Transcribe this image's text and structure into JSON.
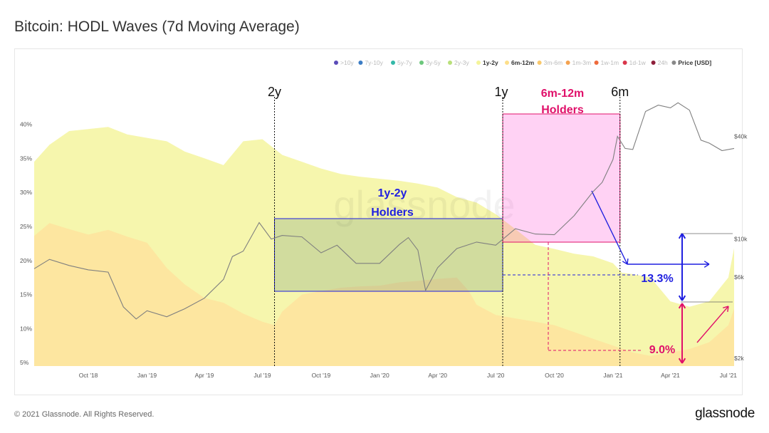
{
  "page": {
    "title": "Bitcoin: HODL Waves (7d Moving Average)",
    "copyright": "© 2021 Glassnode. All Rights Reserved.",
    "brand": "glassnode",
    "watermark": "glassnode"
  },
  "chart_data": {
    "type": "area",
    "title": "Bitcoin: HODL Waves (7d Moving Average)",
    "legend_placement": "top-right",
    "legend": [
      {
        "label": ">10y",
        "color": "#5b4bb8",
        "active": false
      },
      {
        "label": "7y-10y",
        "color": "#3b7cc4",
        "active": false
      },
      {
        "label": "5y-7y",
        "color": "#33b8a8",
        "active": false
      },
      {
        "label": "3y-5y",
        "color": "#6cc77c",
        "active": false
      },
      {
        "label": "2y-3y",
        "color": "#b9e07a",
        "active": false
      },
      {
        "label": "1y-2y",
        "color": "#f4f49a",
        "active": true
      },
      {
        "label": "6m-12m",
        "color": "#fddf8a",
        "active": true
      },
      {
        "label": "3m-6m",
        "color": "#f9c86b",
        "active": false
      },
      {
        "label": "1m-3m",
        "color": "#f4a24f",
        "active": false
      },
      {
        "label": "1w-1m",
        "color": "#ee6a3c",
        "active": false
      },
      {
        "label": "1d-1w",
        "color": "#d9364a",
        "active": false
      },
      {
        "label": "24h",
        "color": "#8e1f3a",
        "active": false
      },
      {
        "label": "Price [USD]",
        "color": "#888888",
        "active": true
      }
    ],
    "x_ticks": [
      "Oct '18",
      "Jan '19",
      "Apr '19",
      "Jul '19",
      "Oct '19",
      "Jan '20",
      "Apr '20",
      "Jul '20",
      "Oct '20",
      "Jan '21",
      "Apr '21",
      "Jul '21"
    ],
    "y_left_ticks": [
      "5%",
      "10%",
      "15%",
      "20%",
      "25%",
      "30%",
      "35%",
      "40%"
    ],
    "y_left_ticks_values": [
      5,
      10,
      15,
      20,
      25,
      30,
      35,
      40
    ],
    "ylim_left": [
      4.5,
      43.5
    ],
    "y_right_ticks": [
      "$2k",
      "$6k",
      "$10k",
      "$40k"
    ],
    "y_right_ticks_values": [
      2000,
      6000,
      10000,
      40000
    ],
    "ylim_right": [
      1800,
      65000
    ],
    "y_right_scale": "log",
    "series": [
      {
        "name": "6m-12m",
        "color": "#fde6a0",
        "x": [
          "2018-07-08",
          "2018-08-01",
          "2018-09-01",
          "2018-10-01",
          "2018-11-01",
          "2018-12-01",
          "2019-01-01",
          "2019-02-01",
          "2019-03-01",
          "2019-04-01",
          "2019-05-01",
          "2019-06-01",
          "2019-07-01",
          "2019-07-20",
          "2019-08-01",
          "2019-09-01",
          "2019-10-01",
          "2019-11-01",
          "2019-12-01",
          "2020-01-01",
          "2020-02-01",
          "2020-03-01",
          "2020-04-01",
          "2020-05-01",
          "2020-05-20",
          "2020-06-01",
          "2020-07-01",
          "2020-08-01",
          "2020-09-01",
          "2020-10-01",
          "2020-11-01",
          "2020-12-01",
          "2021-01-01",
          "2021-02-01",
          "2021-03-01",
          "2021-04-01",
          "2021-05-01",
          "2021-06-01",
          "2021-07-01",
          "2021-07-10"
        ],
        "values": [
          23.6,
          25.5,
          24.6,
          23.8,
          24.5,
          23.5,
          22.6,
          18.9,
          16.5,
          14.5,
          13.8,
          12.2,
          11.0,
          10.5,
          12.5,
          15.0,
          15.5,
          16.0,
          16.2,
          16.3,
          16.8,
          17.0,
          17.3,
          17.5,
          15.5,
          13.5,
          12.0,
          11.5,
          11.0,
          10.5,
          9.5,
          8.5,
          7.5,
          6.5,
          6.0,
          6.5,
          7.0,
          8.0,
          10.5,
          12.9
        ]
      },
      {
        "name": "1y-2y",
        "color": "#f6f6ad",
        "x": [
          "2018-07-08",
          "2018-08-01",
          "2018-09-01",
          "2018-10-01",
          "2018-11-01",
          "2018-12-01",
          "2019-01-01",
          "2019-02-01",
          "2019-03-01",
          "2019-04-01",
          "2019-05-01",
          "2019-06-01",
          "2019-07-01",
          "2019-08-01",
          "2019-09-01",
          "2019-10-01",
          "2019-11-01",
          "2019-12-01",
          "2020-01-01",
          "2020-02-01",
          "2020-03-01",
          "2020-04-01",
          "2020-05-01",
          "2020-06-01",
          "2020-07-01",
          "2020-08-01",
          "2020-09-01",
          "2020-10-01",
          "2020-11-01",
          "2020-12-01",
          "2021-01-01",
          "2021-01-15",
          "2021-02-01",
          "2021-03-01",
          "2021-04-01",
          "2021-05-01",
          "2021-06-01",
          "2021-07-01",
          "2021-07-10"
        ],
        "values": [
          34.5,
          37.0,
          39.0,
          39.3,
          39.6,
          38.5,
          38.0,
          37.5,
          36.0,
          35.0,
          34.0,
          37.5,
          37.8,
          35.5,
          34.5,
          33.5,
          32.7,
          32.3,
          32.0,
          31.7,
          31.3,
          30.7,
          29.3,
          28.5,
          26.8,
          24.6,
          22.3,
          21.7,
          21.0,
          20.6,
          19.6,
          18.2,
          18.0,
          17.5,
          14.0,
          13.2,
          14.0,
          17.5,
          21.8
        ]
      },
      {
        "name": "Price [USD]",
        "color": "#7f7f7f",
        "x": [
          "2018-07-08",
          "2018-08-01",
          "2018-09-01",
          "2018-10-01",
          "2018-11-01",
          "2018-11-25",
          "2018-12-15",
          "2019-01-01",
          "2019-02-01",
          "2019-03-01",
          "2019-04-01",
          "2019-05-01",
          "2019-05-15",
          "2019-06-01",
          "2019-06-26",
          "2019-07-15",
          "2019-08-01",
          "2019-09-01",
          "2019-10-01",
          "2019-10-26",
          "2019-11-25",
          "2019-12-15",
          "2020-01-01",
          "2020-02-01",
          "2020-02-15",
          "2020-03-01",
          "2020-03-13",
          "2020-04-01",
          "2020-05-01",
          "2020-06-01",
          "2020-07-01",
          "2020-08-01",
          "2020-09-01",
          "2020-10-01",
          "2020-11-01",
          "2020-12-01",
          "2020-12-15",
          "2021-01-01",
          "2021-01-08",
          "2021-01-20",
          "2021-02-01",
          "2021-02-21",
          "2021-03-13",
          "2021-04-01",
          "2021-04-13",
          "2021-05-01",
          "2021-05-19",
          "2021-06-01",
          "2021-06-21",
          "2021-07-10"
        ],
        "values": [
          6700,
          7600,
          7000,
          6600,
          6400,
          4000,
          3400,
          3800,
          3500,
          3900,
          4500,
          5800,
          7900,
          8500,
          12500,
          10000,
          10500,
          10300,
          8300,
          9200,
          7200,
          7200,
          7200,
          9300,
          10200,
          8600,
          5000,
          6800,
          8800,
          9600,
          9200,
          11500,
          10700,
          10600,
          13700,
          19000,
          21500,
          29300,
          40000,
          34000,
          33500,
          56000,
          61000,
          58800,
          63000,
          57000,
          38000,
          36500,
          33000,
          34000
        ]
      }
    ],
    "annotations": [
      {
        "text": "2y",
        "kind": "marker-label"
      },
      {
        "text": "1y",
        "kind": "marker-label"
      },
      {
        "text": "6m",
        "kind": "marker-label"
      },
      {
        "text": "1y-2y",
        "kind": "box-label"
      },
      {
        "text": "Holders",
        "kind": "box-label"
      },
      {
        "text": "6m-12m",
        "kind": "box-label"
      },
      {
        "text": "Holders",
        "kind": "box-label"
      },
      {
        "text": "13.3%",
        "kind": "delta-label"
      },
      {
        "text": "9.0%",
        "kind": "delta-label"
      }
    ]
  }
}
